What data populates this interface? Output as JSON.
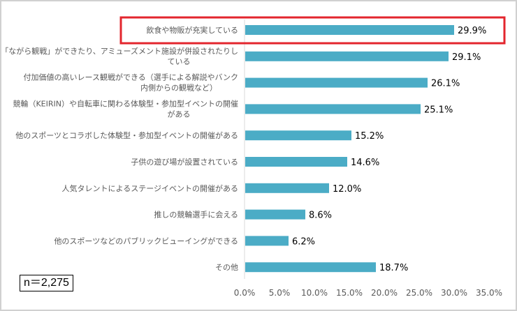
{
  "chart_data": {
    "type": "bar",
    "orientation": "horizontal",
    "categories": [
      [
        "飲食や物販が充実している"
      ],
      [
        "「ながら観戦」ができたり、アミューズメント施設が併設されたりし",
        "ている"
      ],
      [
        "付加価値の高いレース観戦ができる（選手による解説やバンク",
        "内側からの観戦など）"
      ],
      [
        "競輪（KEIRIN）や自転車に関わる体験型・参加型イベントの開催",
        "がある"
      ],
      [
        "他のスポーツとコラボした体験型・参加型イベントの開催がある"
      ],
      [
        "子供の遊び場が設置されている"
      ],
      [
        "人気タレントによるステージイベントの開催がある"
      ],
      [
        "推しの競輪選手に会える"
      ],
      [
        "他のスポーツなどのパブリックビューイングができる"
      ],
      [
        "その他"
      ]
    ],
    "values": [
      29.9,
      29.1,
      26.1,
      25.1,
      15.2,
      14.6,
      12.0,
      8.6,
      6.2,
      18.7
    ],
    "value_labels": [
      "29.9%",
      "29.1%",
      "26.1%",
      "25.1%",
      "15.2%",
      "14.6%",
      "12.0%",
      "8.6%",
      "6.2%",
      "18.7%"
    ],
    "xlim": [
      0,
      35
    ],
    "ticks": [
      "0.0%",
      "5.0%",
      "10.0%",
      "15.0%",
      "20.0%",
      "25.0%",
      "30.0%",
      "35.0%"
    ],
    "tick_values": [
      0,
      5,
      10,
      15,
      20,
      25,
      30,
      35
    ],
    "grid": false,
    "bar_color": "#4bacc6",
    "highlight_color": "#e3262e",
    "highlighted_index": 0,
    "annotation": "n＝2,275"
  }
}
